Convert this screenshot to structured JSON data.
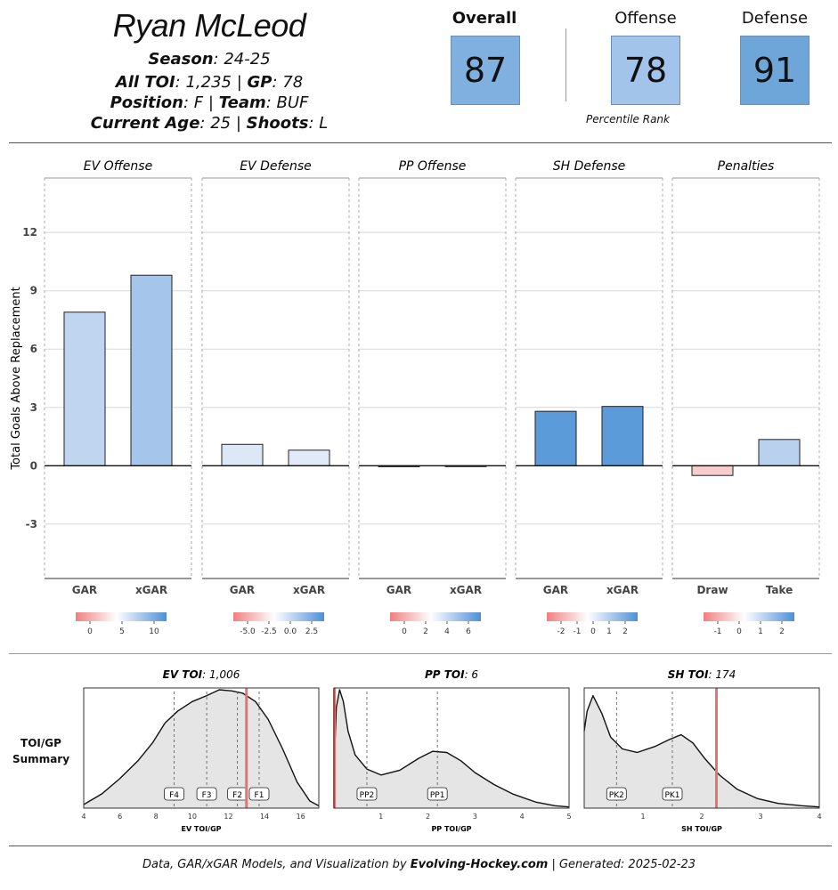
{
  "player": {
    "name": "Ryan McLeod",
    "season_label": "Season",
    "season": "24-25",
    "toi_label": "All TOI",
    "toi": "1,235",
    "gp_label": "GP",
    "gp": "78",
    "position_label": "Position",
    "position": "F",
    "team_label": "Team",
    "team": "BUF",
    "age_label": "Current Age",
    "age": "25",
    "shoots_label": "Shoots",
    "shoots": "L"
  },
  "scores": {
    "overall_label": "Overall",
    "overall": "87",
    "offense_label": "Offense",
    "offense": "78",
    "defense_label": "Defense",
    "defense": "91",
    "percentile_caption": "Percentile Rank",
    "colors": {
      "overall": "#7fb0e0",
      "offense": "#a3c4ea",
      "defense": "#6fa6da"
    }
  },
  "chart_data": [
    {
      "type": "bar",
      "ylabel": "Total Goals Above Replacement",
      "ylim": [
        -5.8,
        14.8
      ],
      "yticks": [
        -3,
        0,
        3,
        6,
        9,
        12
      ],
      "grid": true,
      "panels": [
        {
          "title": "EV Offense",
          "categories": [
            "GAR",
            "xGAR"
          ],
          "values": [
            7.9,
            9.8
          ],
          "colors": [
            "#c0d5ef",
            "#a6c5ea"
          ],
          "legend_ticks": [
            "0",
            "5",
            "10"
          ]
        },
        {
          "title": "EV Defense",
          "categories": [
            "GAR",
            "xGAR"
          ],
          "values": [
            1.1,
            0.8
          ],
          "colors": [
            "#dde8f7",
            "#e1eaf7"
          ],
          "legend_ticks": [
            "-5.0",
            "-2.5",
            "0.0",
            "2.5"
          ]
        },
        {
          "title": "PP Offense",
          "categories": [
            "GAR",
            "xGAR"
          ],
          "values": [
            -0.05,
            -0.02
          ],
          "colors": [
            "#f5eded",
            "#f3f3f5"
          ],
          "legend_ticks": [
            "0",
            "2",
            "4",
            "6"
          ]
        },
        {
          "title": "SH Defense",
          "categories": [
            "GAR",
            "xGAR"
          ],
          "values": [
            2.8,
            3.05
          ],
          "colors": [
            "#5b9bd9",
            "#5b9bd9"
          ],
          "legend_ticks": [
            "-2",
            "-1",
            "0",
            "1",
            "2"
          ]
        },
        {
          "title": "Penalties",
          "categories": [
            "Draw",
            "Take"
          ],
          "values": [
            -0.5,
            1.35
          ],
          "colors": [
            "#f7cccc",
            "#b9d1ef"
          ],
          "legend_ticks": [
            "-1",
            "0",
            "1",
            "2"
          ]
        }
      ]
    },
    {
      "type": "area",
      "summary_label_line1": "TOI/GP",
      "summary_label_line2": "Summary",
      "panels": [
        {
          "title_label": "EV TOI",
          "title_value": "1,006",
          "xlabel": "EV TOI/GP",
          "xlim": [
            4,
            17
          ],
          "xticks": [
            "4",
            "6",
            "8",
            "10",
            "12",
            "14",
            "16"
          ],
          "x": [
            4,
            5,
            6,
            7,
            7.8,
            8.5,
            9.2,
            10,
            10.8,
            11.5,
            12.2,
            12.8,
            13.5,
            14.2,
            15,
            15.8,
            16.5,
            17
          ],
          "y": [
            0.03,
            0.12,
            0.25,
            0.4,
            0.55,
            0.72,
            0.82,
            0.9,
            0.95,
            1.0,
            0.99,
            0.97,
            0.9,
            0.75,
            0.5,
            0.22,
            0.06,
            0.02
          ],
          "player_value": 13.0,
          "markers": [
            {
              "label": "F4",
              "x": 9.0
            },
            {
              "label": "F3",
              "x": 10.8
            },
            {
              "label": "F2",
              "x": 12.5
            },
            {
              "label": "F1",
              "x": 13.7
            }
          ]
        },
        {
          "title_label": "PP TOI",
          "title_value": "6",
          "xlabel": "PP TOI/GP",
          "xlim": [
            0,
            5
          ],
          "xticks": [
            "1",
            "2",
            "3",
            "4",
            "5"
          ],
          "x": [
            0,
            0.05,
            0.12,
            0.2,
            0.3,
            0.45,
            0.7,
            1.0,
            1.4,
            1.8,
            2.1,
            2.4,
            2.7,
            3.0,
            3.4,
            3.8,
            4.3,
            4.7,
            5.0
          ],
          "y": [
            0.3,
            0.85,
            1.0,
            0.9,
            0.65,
            0.45,
            0.33,
            0.28,
            0.32,
            0.42,
            0.48,
            0.47,
            0.4,
            0.3,
            0.2,
            0.12,
            0.05,
            0.02,
            0.01
          ],
          "player_value": 0.01,
          "markers": [
            {
              "label": "PP2",
              "x": 0.7
            },
            {
              "label": "PP1",
              "x": 2.2
            }
          ]
        },
        {
          "title_label": "SH TOI",
          "title_value": "174",
          "xlabel": "SH TOI/GP",
          "xlim": [
            0,
            4
          ],
          "xticks": [
            "1",
            "2",
            "3",
            "4"
          ],
          "x": [
            0,
            0.05,
            0.15,
            0.3,
            0.45,
            0.65,
            0.9,
            1.2,
            1.45,
            1.65,
            1.85,
            2.05,
            2.3,
            2.6,
            2.95,
            3.3,
            3.7,
            4.0
          ],
          "y": [
            0.65,
            0.82,
            0.95,
            0.8,
            0.6,
            0.5,
            0.47,
            0.52,
            0.58,
            0.62,
            0.55,
            0.42,
            0.28,
            0.16,
            0.08,
            0.04,
            0.02,
            0.01
          ],
          "player_value": 2.25,
          "markers": [
            {
              "label": "PK2",
              "x": 0.55
            },
            {
              "label": "PK1",
              "x": 1.5
            }
          ]
        }
      ]
    }
  ],
  "footer": {
    "prefix": "Data, GAR/xGAR Models, and Visualization by ",
    "site": "Evolving-Hockey.com",
    "suffix": " | Generated: 2025-02-23"
  }
}
